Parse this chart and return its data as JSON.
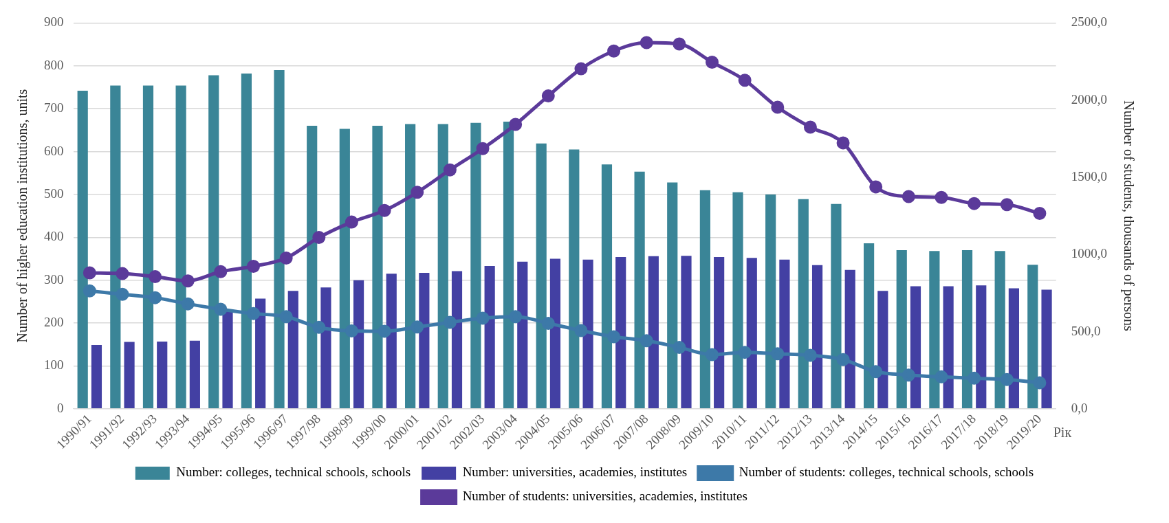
{
  "chart_data": {
    "type": "bar",
    "xlabel": "Рік",
    "ylabel": "Number of higher education institutions, units",
    "y2label": "Number of students, thousands of persons",
    "categories": [
      "1990/91",
      "1991/92",
      "1992/93",
      "1993/94",
      "1994/95",
      "1995/96",
      "1996/97",
      "1997/98",
      "1998/99",
      "1999/00",
      "2000/01",
      "2001/02",
      "2002/03",
      "2003/04",
      "2004/05",
      "2005/06",
      "2006/07",
      "2007/08",
      "2008/09",
      "2009/10",
      "2010/11",
      "2011/12",
      "2012/13",
      "2013/14",
      "2014/15",
      "2015/16",
      "2016/17",
      "2017/18",
      "2018/19",
      "2019/20"
    ],
    "series": [
      {
        "name": "Number: colleges, technical schools, schools",
        "color": "#3a8597",
        "values": [
          742,
          754,
          754,
          754,
          778,
          782,
          790,
          660,
          653,
          660,
          664,
          664,
          667,
          670,
          619,
          605,
          570,
          553,
          528,
          510,
          505,
          500,
          489,
          478,
          386,
          370,
          368,
          370,
          368,
          336
        ]
      },
      {
        "name": "Number: universities, academies, institutes",
        "color": "#4340a3",
        "values": [
          149,
          156,
          157,
          159,
          230,
          257,
          275,
          283,
          300,
          315,
          317,
          321,
          333,
          343,
          350,
          348,
          354,
          356,
          357,
          354,
          352,
          348,
          335,
          324,
          275,
          286,
          286,
          288,
          281,
          278
        ]
      },
      {
        "name": "Number of students: colleges, technical schools, schools",
        "type": "line",
        "axis": "y2",
        "color": "#3d79a8",
        "values": [
          764,
          742,
          720,
          680,
          645,
          617,
          597,
          528,
          505,
          503,
          530,
          560,
          587,
          597,
          554,
          507,
          467,
          441,
          398,
          351,
          366,
          357,
          347,
          319,
          241,
          219,
          207,
          198,
          190,
          169
        ]
      },
      {
        "name": "Number of students: universities, academies, institutes",
        "type": "line",
        "axis": "y2",
        "color": "#5b3a9a",
        "values": [
          881,
          876,
          856,
          829,
          889,
          923,
          977,
          1110,
          1210,
          1285,
          1403,
          1548,
          1686,
          1843,
          2027,
          2203,
          2318,
          2373,
          2364,
          2246,
          2129,
          1954,
          1825,
          1723,
          1438,
          1375,
          1370,
          1330,
          1323,
          1266
        ]
      }
    ],
    "ylim": [
      0,
      900
    ],
    "yticks": [
      0,
      100,
      200,
      300,
      400,
      500,
      600,
      700,
      800,
      900
    ],
    "y2lim": [
      0,
      2500
    ],
    "y2ticks": [
      {
        "value": 0,
        "label": "0,0"
      },
      {
        "value": 500,
        "label": "500,0"
      },
      {
        "value": 1000,
        "label": "1000,0"
      },
      {
        "value": 1500,
        "label": "1500,0"
      },
      {
        "value": 2000,
        "label": "2000,0"
      },
      {
        "value": 2500,
        "label": "2500,0"
      }
    ],
    "grid": "y",
    "legend": "bottom",
    "marker": "circle",
    "line_style": "solid"
  }
}
